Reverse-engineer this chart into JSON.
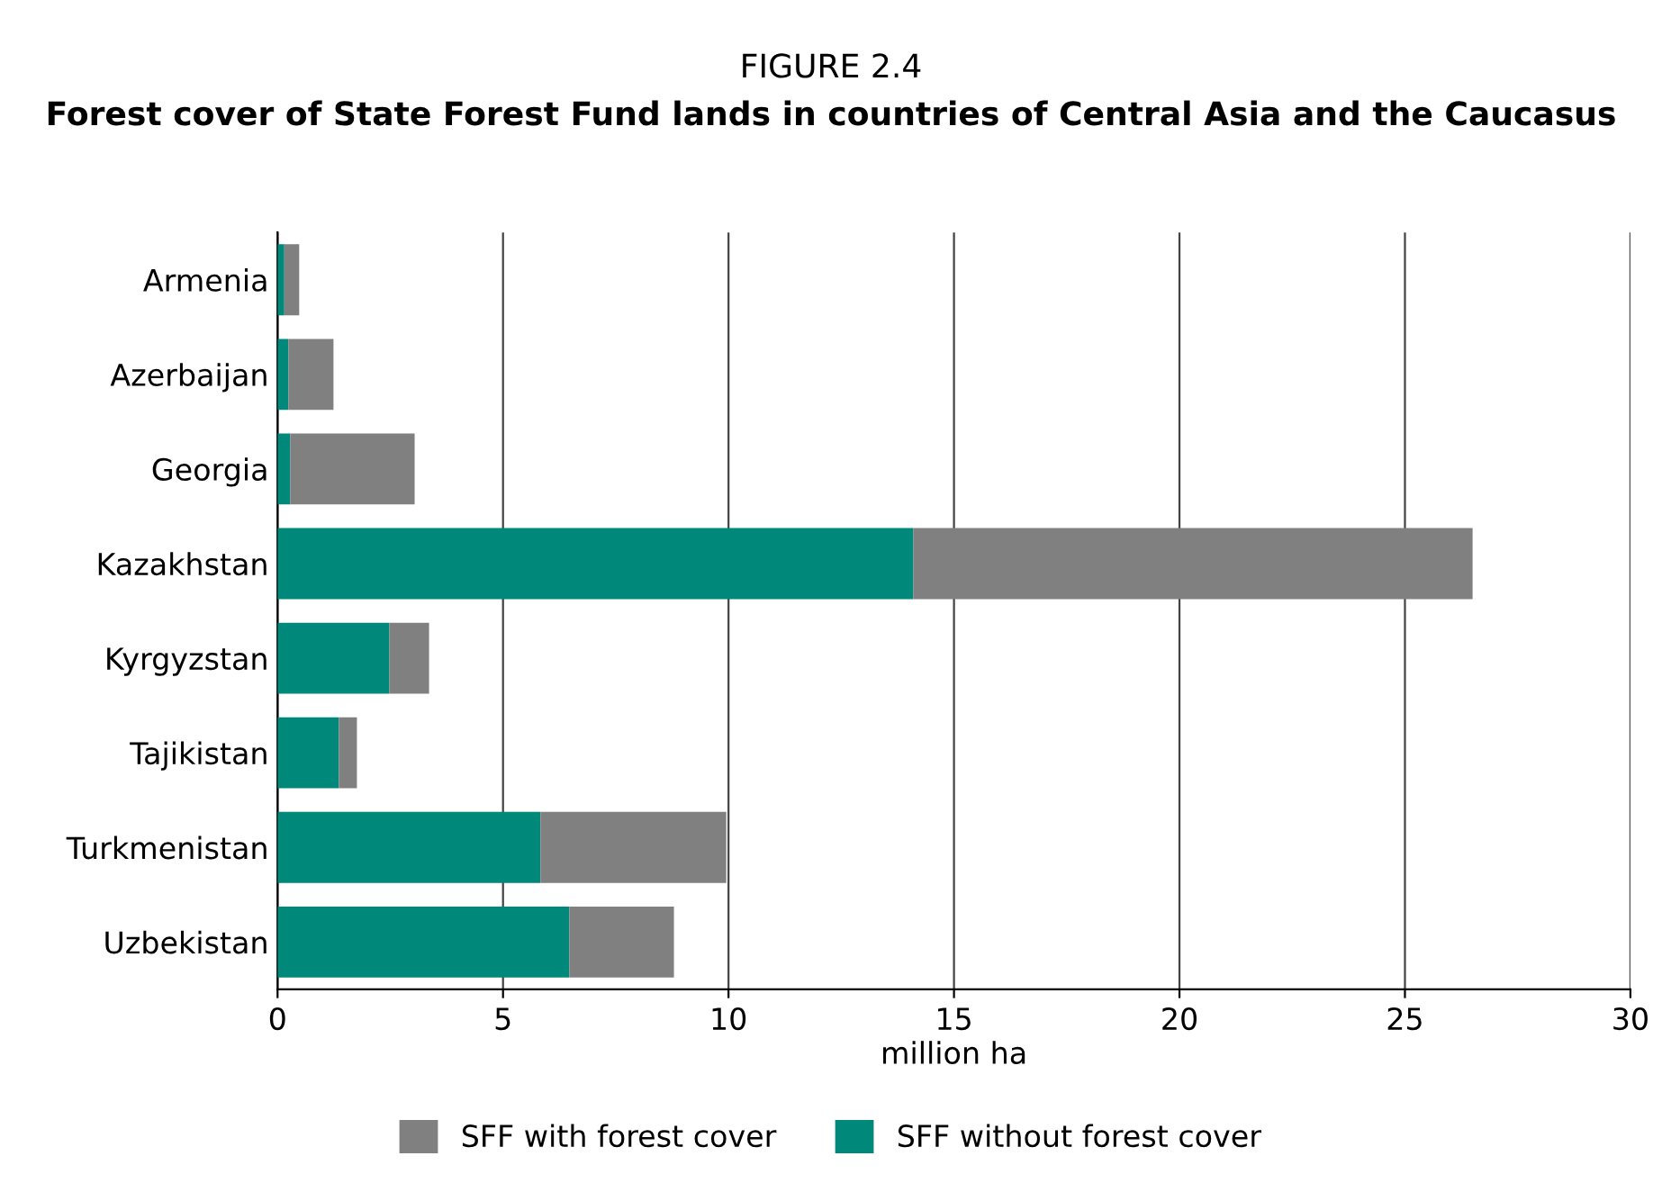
{
  "chart_data": {
    "type": "bar",
    "orientation": "horizontal",
    "stacked": true,
    "title": "FIGURE 2.4",
    "subtitle": "Forest cover of State Forest Fund lands in countries of Central Asia and the Caucasus",
    "xlabel": "million ha",
    "categories": [
      "Armenia",
      "Azerbaijan",
      "Georgia",
      "Kazakhstan",
      "Kyrgyzstan",
      "Tajikistan",
      "Turkmenistan",
      "Uzbekistan"
    ],
    "series": [
      {
        "name": "SFF without forest cover",
        "color": "#00897b",
        "values": [
          0.15,
          0.24,
          0.28,
          14.1,
          2.48,
          1.36,
          5.83,
          6.47
        ]
      },
      {
        "name": "SFF with forest cover",
        "color": "#808080",
        "values": [
          0.33,
          1.0,
          2.76,
          12.4,
          0.88,
          0.4,
          4.12,
          2.32
        ]
      }
    ],
    "xlim": [
      0,
      30
    ],
    "xticks": [
      0,
      5,
      10,
      15,
      20,
      25,
      30
    ],
    "grid": "x",
    "legend": "bottom"
  }
}
